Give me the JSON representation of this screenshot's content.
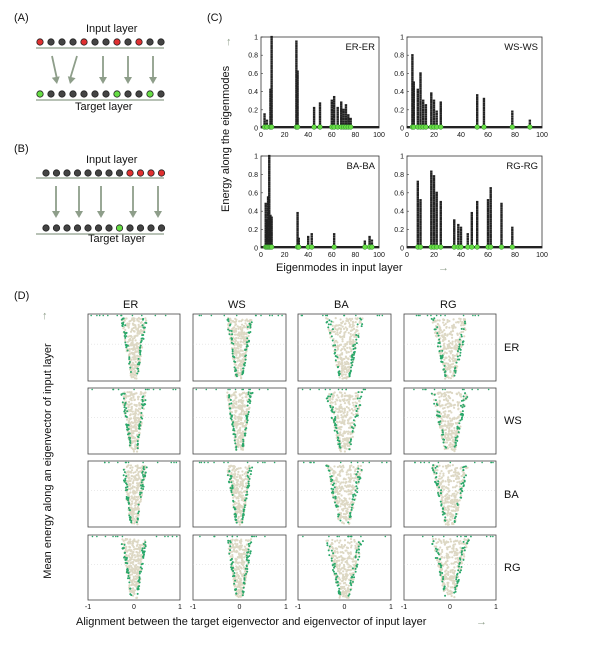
{
  "panel_labels": {
    "a": "(A)",
    "b": "(B)",
    "c": "(C)",
    "d": "(D)"
  },
  "panel_a": {
    "top_label": "Input layer",
    "bottom_label": "Target layer"
  },
  "panel_b": {
    "top_label": "Input layer",
    "bottom_label": "Target layer"
  },
  "panel_c": {
    "ylabel": "Energy along the eigenmodes",
    "xlabel": "Eigenmodes in input layer",
    "xticks": [
      "0",
      "20",
      "40",
      "60",
      "80",
      "100"
    ],
    "yticks": [
      "0",
      "0.2",
      "0.4",
      "0.6",
      "0.8",
      "1"
    ]
  },
  "panel_d": {
    "ylabel": "Mean energy along an eigenvector of input layer",
    "xlabel": "Alignment between the target eigenvector and eigenvector of input layer",
    "col_headers": [
      "ER",
      "WS",
      "BA",
      "RG"
    ],
    "row_labels": [
      "ER",
      "WS",
      "BA",
      "RG"
    ],
    "xticks": [
      "-1",
      "0",
      "1"
    ]
  },
  "colors": {
    "arrow": "#8e9e8a",
    "green": "#2aa86a",
    "beige": "#ddd8c4",
    "red": "#e03030",
    "lime": "#66dd44"
  },
  "chart_data": [
    {
      "type": "scatter",
      "title": "ER-ER",
      "xlim": [
        0,
        100
      ],
      "ylim": [
        0,
        1
      ],
      "peaks": [
        [
          3,
          0.15
        ],
        [
          5,
          0.08
        ],
        [
          8,
          0.42
        ],
        [
          9,
          1.0
        ],
        [
          30,
          0.95
        ],
        [
          31,
          0.62
        ],
        [
          45,
          0.22
        ],
        [
          50,
          0.27
        ],
        [
          60,
          0.3
        ],
        [
          62,
          0.34
        ],
        [
          65,
          0.22
        ],
        [
          68,
          0.28
        ],
        [
          70,
          0.2
        ],
        [
          72,
          0.25
        ],
        [
          74,
          0.14
        ],
        [
          76,
          0.1
        ]
      ]
    },
    {
      "type": "scatter",
      "title": "WS-WS",
      "xlim": [
        0,
        100
      ],
      "ylim": [
        0,
        1
      ],
      "peaks": [
        [
          4,
          0.8
        ],
        [
          5,
          0.5
        ],
        [
          8,
          0.42
        ],
        [
          10,
          0.6
        ],
        [
          12,
          0.3
        ],
        [
          14,
          0.25
        ],
        [
          18,
          0.38
        ],
        [
          20,
          0.3
        ],
        [
          22,
          0.18
        ],
        [
          25,
          0.28
        ],
        [
          52,
          0.36
        ],
        [
          57,
          0.32
        ],
        [
          78,
          0.18
        ],
        [
          91,
          0.08
        ]
      ]
    },
    {
      "type": "scatter",
      "title": "BA-BA",
      "xlim": [
        0,
        100
      ],
      "ylim": [
        0,
        1
      ],
      "peaks": [
        [
          4,
          0.48
        ],
        [
          5,
          0.3
        ],
        [
          6,
          0.55
        ],
        [
          7,
          1.0
        ],
        [
          8,
          0.35
        ],
        [
          9,
          0.33
        ],
        [
          31,
          0.38
        ],
        [
          32,
          0.1
        ],
        [
          40,
          0.12
        ],
        [
          43,
          0.15
        ],
        [
          62,
          0.15
        ],
        [
          88,
          0.07
        ],
        [
          92,
          0.12
        ],
        [
          94,
          0.08
        ]
      ]
    },
    {
      "type": "scatter",
      "title": "RG-RG",
      "xlim": [
        0,
        100
      ],
      "ylim": [
        0,
        1
      ],
      "peaks": [
        [
          8,
          0.72
        ],
        [
          10,
          0.52
        ],
        [
          18,
          0.83
        ],
        [
          20,
          0.78
        ],
        [
          22,
          0.6
        ],
        [
          25,
          0.5
        ],
        [
          35,
          0.3
        ],
        [
          38,
          0.25
        ],
        [
          40,
          0.22
        ],
        [
          45,
          0.15
        ],
        [
          48,
          0.38
        ],
        [
          52,
          0.5
        ],
        [
          60,
          0.52
        ],
        [
          62,
          0.65
        ],
        [
          70,
          0.48
        ],
        [
          78,
          0.22
        ]
      ]
    }
  ]
}
